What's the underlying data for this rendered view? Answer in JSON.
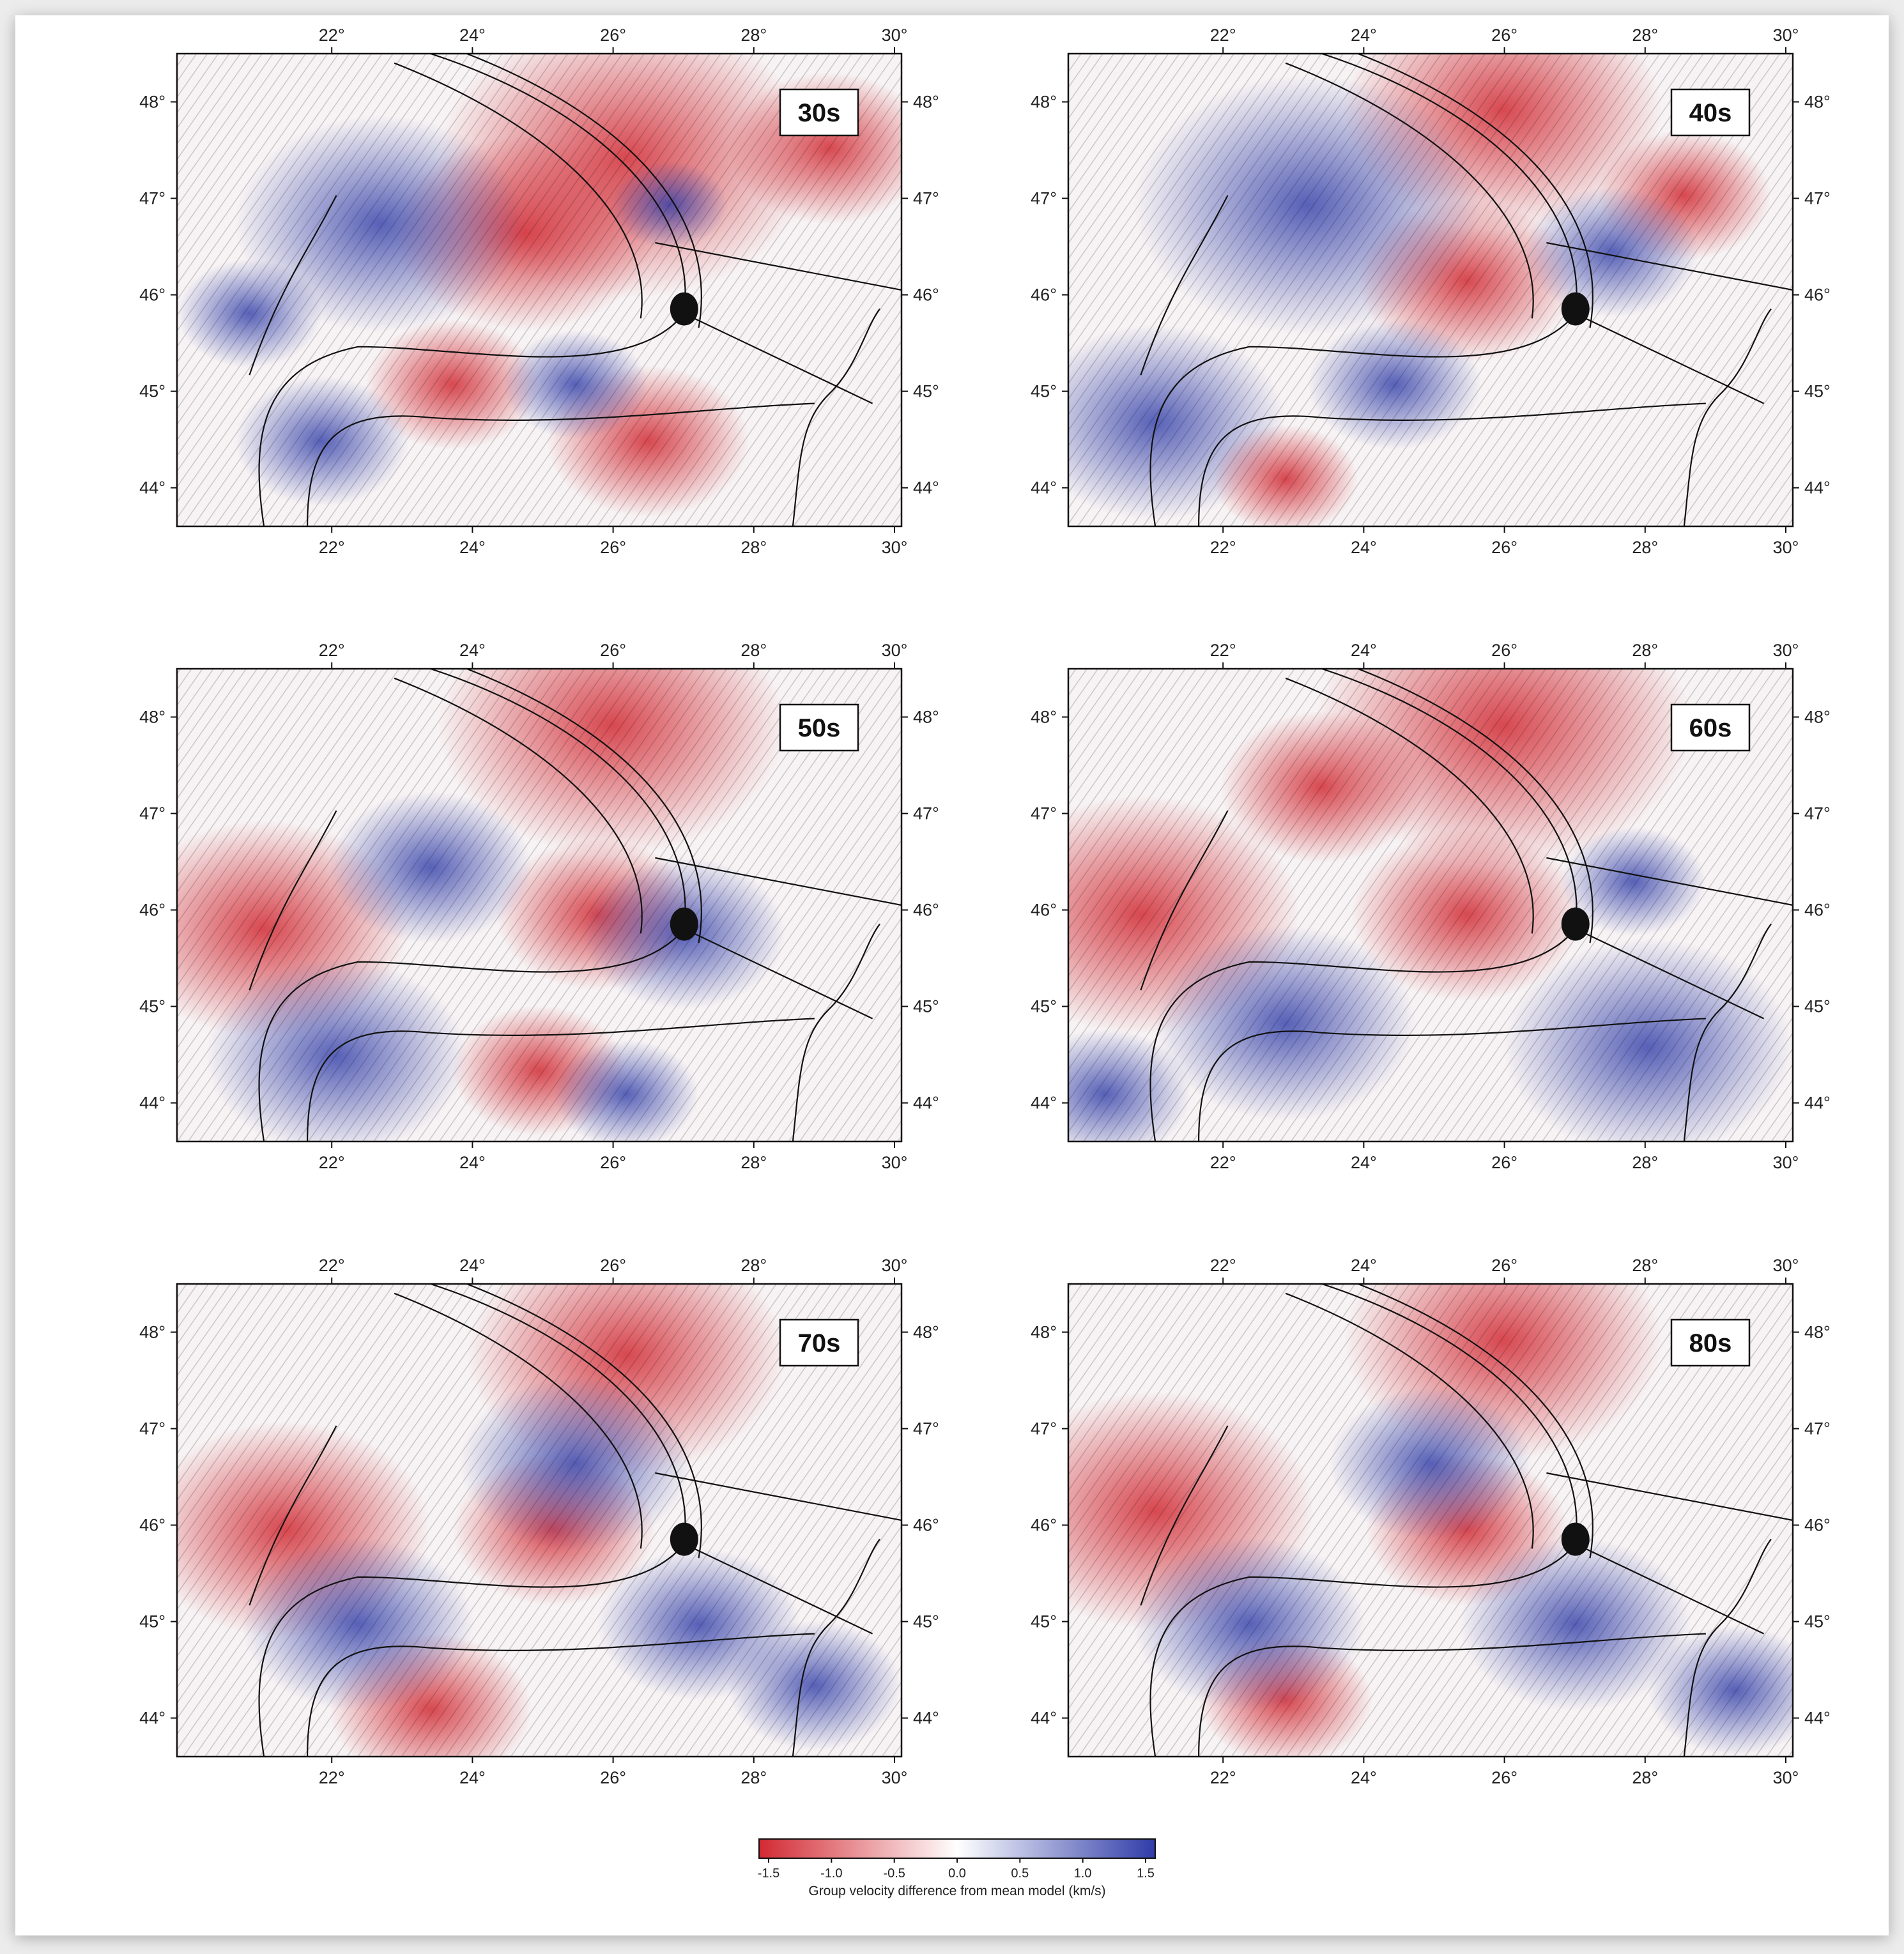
{
  "colors": {
    "negative": "#d22a33",
    "neutral": "#ffffff",
    "positive": "#2f3ca8",
    "frame": "#111111"
  },
  "axes": {
    "lon_ticks": [
      "22°",
      "24°",
      "26°",
      "28°",
      "30°"
    ],
    "lat_ticks": [
      "48°",
      "47°",
      "46°",
      "45°",
      "44°"
    ]
  },
  "maps": [
    {
      "period": "30s"
    },
    {
      "period": "40s"
    },
    {
      "period": "50s"
    },
    {
      "period": "60s"
    },
    {
      "period": "70s"
    },
    {
      "period": "80s"
    }
  ],
  "colorbar": {
    "ticks": [
      "-1.5",
      "-1.0",
      "-0.5",
      "0.0",
      "0.5",
      "1.0",
      "1.5"
    ],
    "title": "Group velocity difference from mean model (km/s)"
  }
}
